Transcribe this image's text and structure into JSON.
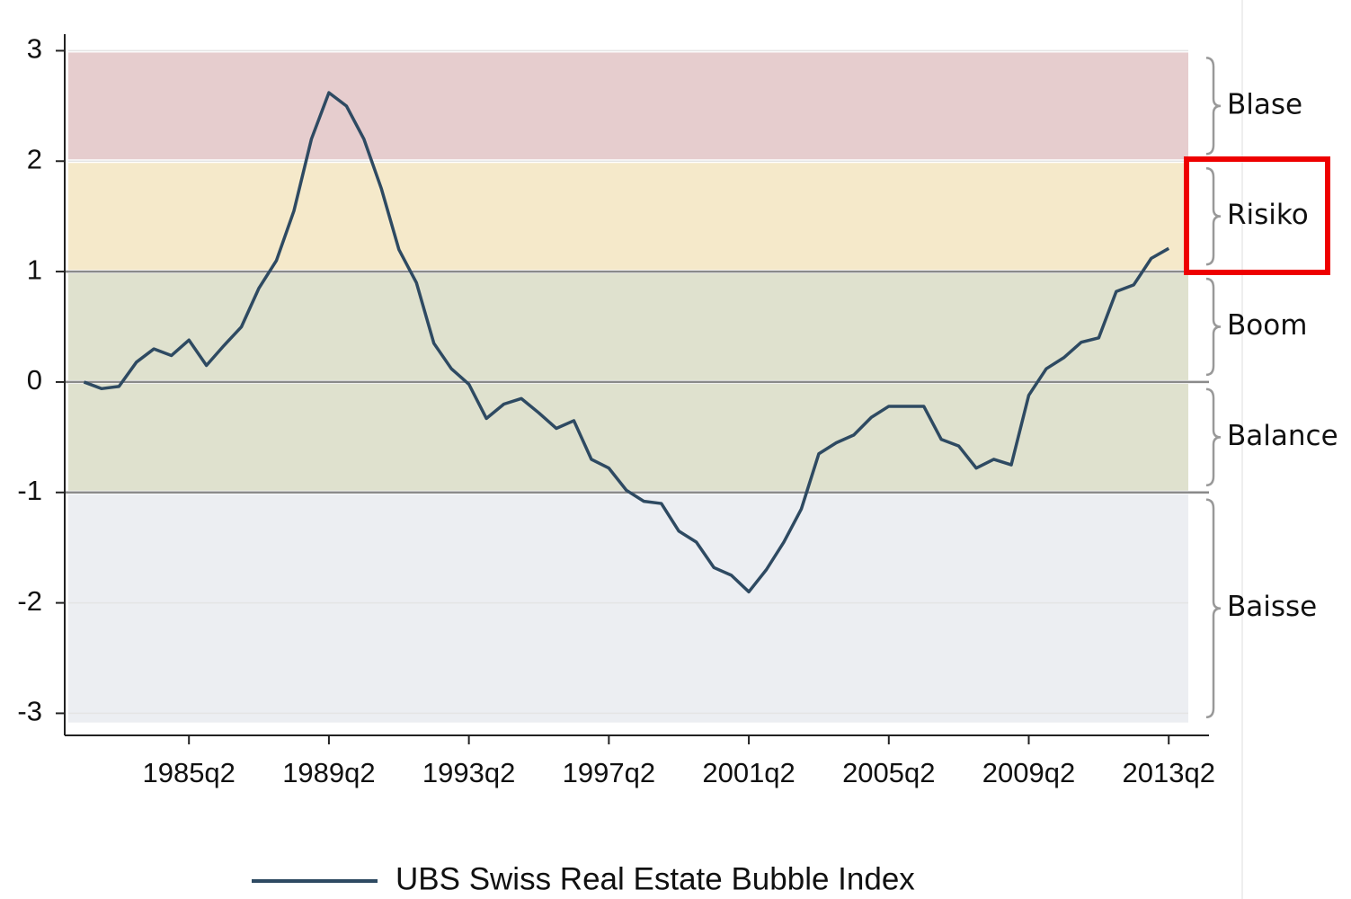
{
  "chart_data": {
    "type": "line",
    "x": [
      1982.25,
      1982.75,
      1983.25,
      1983.75,
      1984.25,
      1984.75,
      1985.25,
      1985.75,
      1986.25,
      1986.75,
      1987.25,
      1987.75,
      1988.25,
      1988.75,
      1989.25,
      1989.75,
      1990.25,
      1990.75,
      1991.25,
      1991.75,
      1992.25,
      1992.75,
      1993.25,
      1993.75,
      1994.25,
      1994.75,
      1995.25,
      1995.75,
      1996.25,
      1996.75,
      1997.25,
      1997.75,
      1998.25,
      1998.75,
      1999.25,
      1999.75,
      2000.25,
      2000.75,
      2001.25,
      2001.75,
      2002.25,
      2002.75,
      2003.25,
      2003.75,
      2004.25,
      2004.75,
      2005.25,
      2005.75,
      2006.25,
      2006.75,
      2007.25,
      2007.75,
      2008.25,
      2008.75,
      2009.25,
      2009.75,
      2010.25,
      2010.75,
      2011.25,
      2011.75,
      2012.25,
      2012.75,
      2013.25
    ],
    "series": [
      {
        "name": "UBS Swiss Real Estate Bubble Index",
        "color": "#2e4a62",
        "values": [
          0.0,
          -0.06,
          -0.04,
          0.18,
          0.3,
          0.24,
          0.38,
          0.15,
          0.33,
          0.5,
          0.85,
          1.1,
          1.55,
          2.2,
          2.62,
          2.5,
          2.2,
          1.75,
          1.2,
          0.9,
          0.35,
          0.12,
          -0.02,
          -0.33,
          -0.2,
          -0.15,
          -0.28,
          -0.42,
          -0.35,
          -0.7,
          -0.78,
          -0.98,
          -1.08,
          -1.1,
          -1.35,
          -1.45,
          -1.68,
          -1.75,
          -1.9,
          -1.7,
          -1.45,
          -1.15,
          -0.65,
          -0.55,
          -0.48,
          -0.32,
          -0.22,
          -0.22,
          -0.22,
          -0.52,
          -0.58,
          -0.78,
          -0.7,
          -0.75,
          -0.12,
          0.12,
          0.22,
          0.36,
          0.4,
          0.82,
          0.88,
          1.12,
          1.21
        ]
      }
    ],
    "xlim": [
      1981.7,
      2014.4
    ],
    "ylim": [
      -3.2,
      3.15
    ],
    "xticks": [
      {
        "value": 1985.25,
        "label": "1985q2"
      },
      {
        "value": 1989.25,
        "label": "1989q2"
      },
      {
        "value": 1993.25,
        "label": "1993q2"
      },
      {
        "value": 1997.25,
        "label": "1997q2"
      },
      {
        "value": 2001.25,
        "label": "2001q2"
      },
      {
        "value": 2005.25,
        "label": "2005q2"
      },
      {
        "value": 2009.25,
        "label": "2009q2"
      },
      {
        "value": 2013.25,
        "label": "2013q2"
      }
    ],
    "yticks": [
      -3,
      -2,
      -1,
      0,
      1,
      2,
      3
    ],
    "bands": [
      {
        "label": "Blase",
        "range": [
          2,
          3
        ],
        "color": "#e6cdce"
      },
      {
        "label": "Risiko",
        "range": [
          1,
          2
        ],
        "color": "#f5e9ca"
      },
      {
        "label": "Boom",
        "range": [
          0,
          1
        ],
        "color": "#dfe1ce"
      },
      {
        "label": "Balance",
        "range": [
          -1,
          0
        ],
        "color": "#dfe1ce"
      },
      {
        "label": "Baisse",
        "range": [
          -3.1,
          -1
        ],
        "color": "#eceef2"
      }
    ],
    "reference_lines": [
      -1,
      0,
      1
    ],
    "legend": "bottom"
  }
}
